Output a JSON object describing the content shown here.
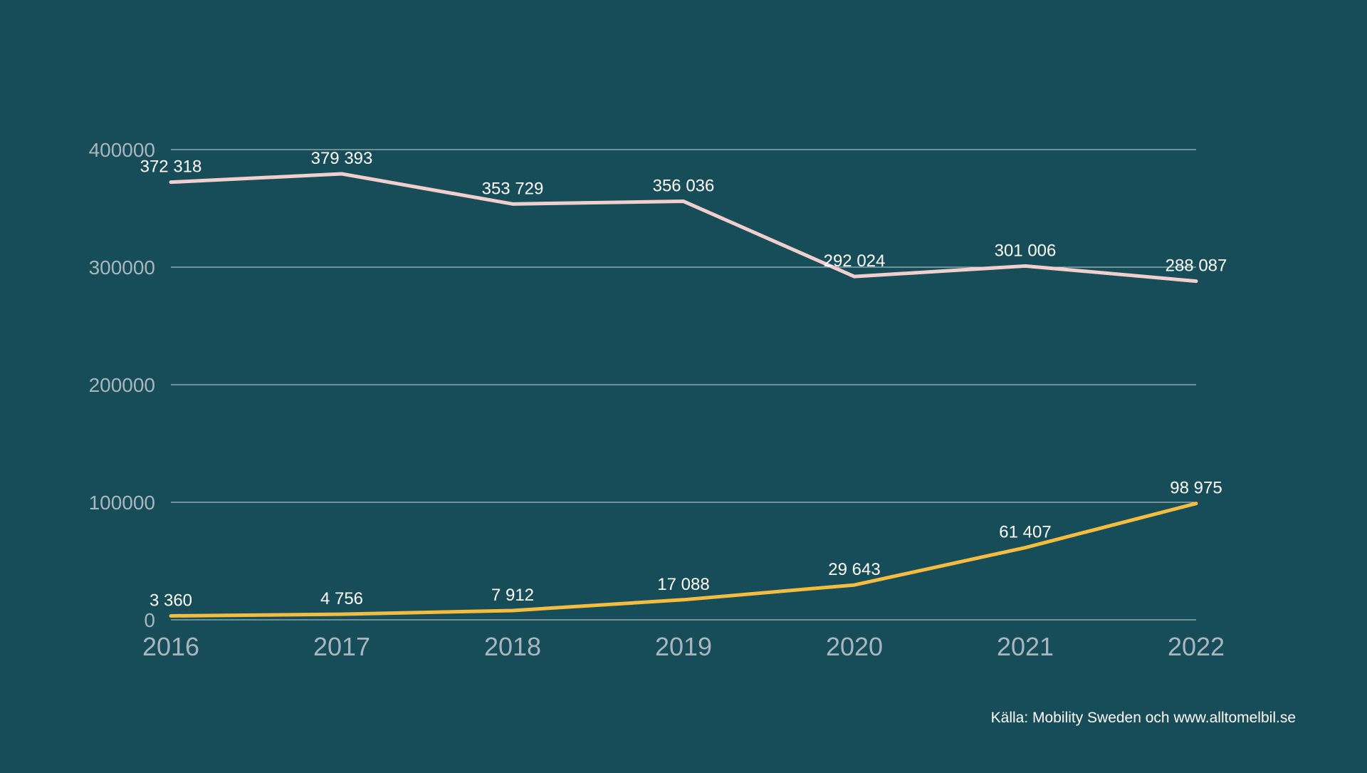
{
  "chart_data": {
    "type": "line",
    "x": [
      "2016",
      "2017",
      "2018",
      "2019",
      "2020",
      "2021",
      "2022"
    ],
    "ylim": [
      0,
      400000
    ],
    "yticks": [
      "0",
      "100000",
      "200000",
      "300000",
      "400000"
    ],
    "grid": true,
    "series": [
      {
        "values": [
          372318,
          379393,
          353729,
          356036,
          292024,
          301006,
          288087
        ],
        "labels": [
          "372 318",
          "379 393",
          "353 729",
          "356 036",
          "292 024",
          "301 006",
          "288 087"
        ],
        "color": "#f2cfcf"
      },
      {
        "values": [
          3360,
          4756,
          7912,
          17088,
          29643,
          61407,
          98975
        ],
        "labels": [
          "3 360",
          "4 756",
          "7 912",
          "17 088",
          "29 643",
          "61 407",
          "98 975"
        ],
        "color": "#f5bd3f"
      }
    ],
    "source": "Källa: Mobility Sweden och www.alltomelbil.se"
  }
}
